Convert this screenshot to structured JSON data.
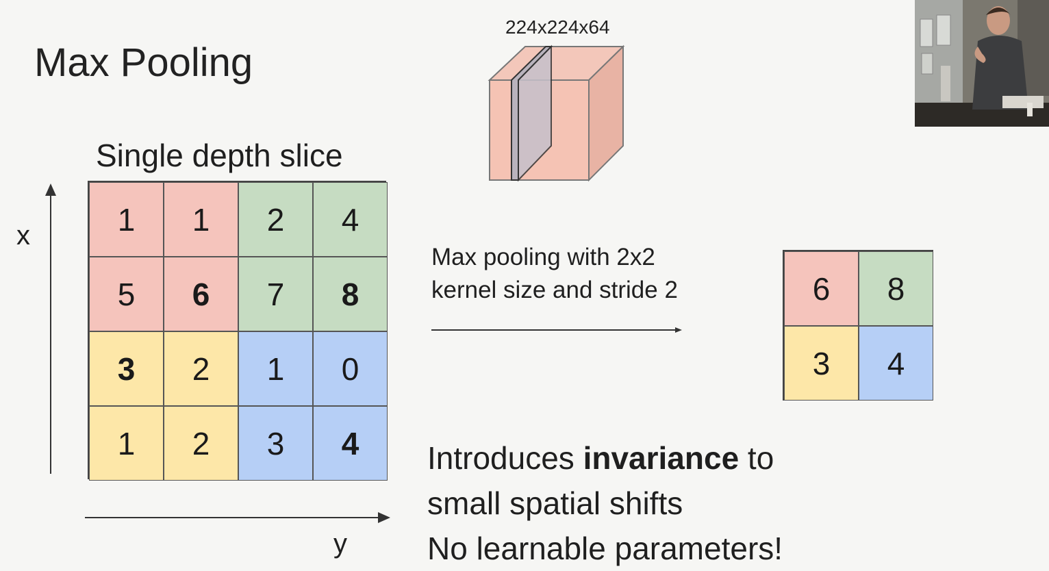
{
  "title": "Max Pooling",
  "cube": {
    "label": "224x224x64",
    "face_color": "#f5c3b4",
    "slice_color": "#b9b3bd"
  },
  "slice": {
    "label": "Single depth slice",
    "x_axis_label": "x",
    "y_axis_label": "y",
    "cells": [
      {
        "value": "1",
        "color": "#f5c4bc",
        "bold": false
      },
      {
        "value": "1",
        "color": "#f5c4bc",
        "bold": false
      },
      {
        "value": "2",
        "color": "#c6dcc2",
        "bold": false
      },
      {
        "value": "4",
        "color": "#c6dcc2",
        "bold": false
      },
      {
        "value": "5",
        "color": "#f5c4bc",
        "bold": false
      },
      {
        "value": "6",
        "color": "#f5c4bc",
        "bold": true
      },
      {
        "value": "7",
        "color": "#c6dcc2",
        "bold": false
      },
      {
        "value": "8",
        "color": "#c6dcc2",
        "bold": true
      },
      {
        "value": "3",
        "color": "#fde7a8",
        "bold": true
      },
      {
        "value": "2",
        "color": "#fde7a8",
        "bold": false
      },
      {
        "value": "1",
        "color": "#b6cff6",
        "bold": false
      },
      {
        "value": "0",
        "color": "#b6cff6",
        "bold": false
      },
      {
        "value": "1",
        "color": "#fde7a8",
        "bold": false
      },
      {
        "value": "2",
        "color": "#fde7a8",
        "bold": false
      },
      {
        "value": "3",
        "color": "#b6cff6",
        "bold": false
      },
      {
        "value": "4",
        "color": "#b6cff6",
        "bold": true
      }
    ]
  },
  "operation": {
    "line1": "Max pooling with 2x2",
    "line2": "kernel size and stride 2"
  },
  "output": {
    "cells": [
      {
        "value": "6",
        "color": "#f5c4bc"
      },
      {
        "value": "8",
        "color": "#c6dcc2"
      },
      {
        "value": "3",
        "color": "#fde7a8"
      },
      {
        "value": "4",
        "color": "#b6cff6"
      }
    ]
  },
  "notes": {
    "line1_pre": "Introduces ",
    "line1_bold": "invariance",
    "line1_post": " to",
    "line2": "small spatial shifts",
    "line3": "No learnable parameters!"
  }
}
